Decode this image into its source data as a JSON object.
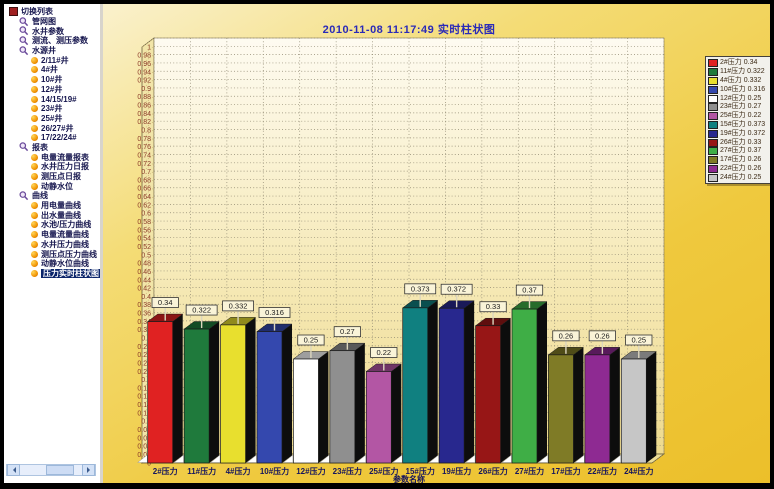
{
  "sidebar": {
    "tree": [
      {
        "label": "切换列表",
        "depth": 0,
        "icon": "tree-root-icon",
        "selected": false
      },
      {
        "label": "管网图",
        "depth": 1,
        "icon": "magnifier-icon",
        "selected": false
      },
      {
        "label": "水井参数",
        "depth": 1,
        "icon": "magnifier-icon",
        "selected": false
      },
      {
        "label": "测流、测压参数",
        "depth": 1,
        "icon": "magnifier-icon",
        "selected": false
      },
      {
        "label": "水源井",
        "depth": 1,
        "icon": "magnifier-icon",
        "selected": false
      },
      {
        "label": "2/11#井",
        "depth": 2,
        "icon": "ball-icon",
        "selected": false
      },
      {
        "label": "4#井",
        "depth": 2,
        "icon": "ball-icon",
        "selected": false
      },
      {
        "label": "10#井",
        "depth": 2,
        "icon": "ball-icon",
        "selected": false
      },
      {
        "label": "12#井",
        "depth": 2,
        "icon": "ball-icon",
        "selected": false
      },
      {
        "label": "14/15/19#",
        "depth": 2,
        "icon": "ball-icon",
        "selected": false
      },
      {
        "label": "23#井",
        "depth": 2,
        "icon": "ball-icon",
        "selected": false
      },
      {
        "label": "25#井",
        "depth": 2,
        "icon": "ball-icon",
        "selected": false
      },
      {
        "label": "26/27#井",
        "depth": 2,
        "icon": "ball-icon",
        "selected": false
      },
      {
        "label": "17/22/24#",
        "depth": 2,
        "icon": "ball-icon",
        "selected": false
      },
      {
        "label": "报表",
        "depth": 1,
        "icon": "magnifier-icon",
        "selected": false
      },
      {
        "label": "电量流量报表",
        "depth": 2,
        "icon": "ball-icon",
        "selected": false
      },
      {
        "label": "水井压力日报",
        "depth": 2,
        "icon": "ball-icon",
        "selected": false
      },
      {
        "label": "测压点日报",
        "depth": 2,
        "icon": "ball-icon",
        "selected": false
      },
      {
        "label": "动静水位",
        "depth": 2,
        "icon": "ball-icon",
        "selected": false
      },
      {
        "label": "曲线",
        "depth": 1,
        "icon": "magnifier-icon",
        "selected": false
      },
      {
        "label": "用电量曲线",
        "depth": 2,
        "icon": "ball-icon",
        "selected": false
      },
      {
        "label": "出水量曲线",
        "depth": 2,
        "icon": "ball-icon",
        "selected": false
      },
      {
        "label": "水池/压力曲线",
        "depth": 2,
        "icon": "ball-icon",
        "selected": false
      },
      {
        "label": "电量流量曲线",
        "depth": 2,
        "icon": "ball-icon",
        "selected": false
      },
      {
        "label": "水井压力曲线",
        "depth": 2,
        "icon": "ball-icon",
        "selected": false
      },
      {
        "label": "测压点压力曲线",
        "depth": 2,
        "icon": "ball-icon",
        "selected": false
      },
      {
        "label": "动静水位曲线",
        "depth": 2,
        "icon": "ball-icon",
        "selected": false
      },
      {
        "label": "压力实时柱状图",
        "depth": 2,
        "icon": "ball-icon",
        "selected": true
      }
    ]
  },
  "chart_data": {
    "type": "bar",
    "style": "3d-column",
    "title": "2010-11-08 11:17:49  实时柱状图",
    "title_color": "#2a2ab8",
    "xlabel": "参数名称",
    "ylabel": "",
    "ylim": [
      0,
      1
    ],
    "ytick_step": 0.02,
    "grid": true,
    "legend_position": "right",
    "categories": [
      "2#压力",
      "11#压力",
      "4#压力",
      "10#压力",
      "12#压力",
      "23#压力",
      "25#压力",
      "15#压力",
      "19#压力",
      "26#压力",
      "27#压力",
      "17#压力",
      "22#压力",
      "24#压力"
    ],
    "values": [
      0.34,
      0.322,
      0.332,
      0.316,
      0.25,
      0.27,
      0.22,
      0.373,
      0.372,
      0.33,
      0.37,
      0.26,
      0.26,
      0.25
    ],
    "value_labels": [
      "0.34",
      "0.322",
      "0.332",
      "0.316",
      "0.25",
      "0.27",
      "0.22",
      "0.373",
      "0.372",
      "0.33",
      "0.37",
      "0.26",
      "0.26",
      "0.25"
    ],
    "colors": [
      "#e02222",
      "#1f7a3c",
      "#e8df2e",
      "#3448ae",
      "#ffffff",
      "#8f8f8f",
      "#b356a4",
      "#108080",
      "#28288e",
      "#971616",
      "#3fae46",
      "#7f7b26",
      "#8e2a92",
      "#c6c6c6"
    ],
    "legend": [
      "2#压力 0.34",
      "11#压力 0.322",
      "4#压力 0.332",
      "10#压力 0.316",
      "12#压力 0.25",
      "23#压力 0.27",
      "25#压力 0.22",
      "15#压力 0.373",
      "19#压力 0.372",
      "26#压力 0.33",
      "27#压力 0.37",
      "17#压力 0.26",
      "22#压力 0.26",
      "24#压力 0.25"
    ]
  }
}
